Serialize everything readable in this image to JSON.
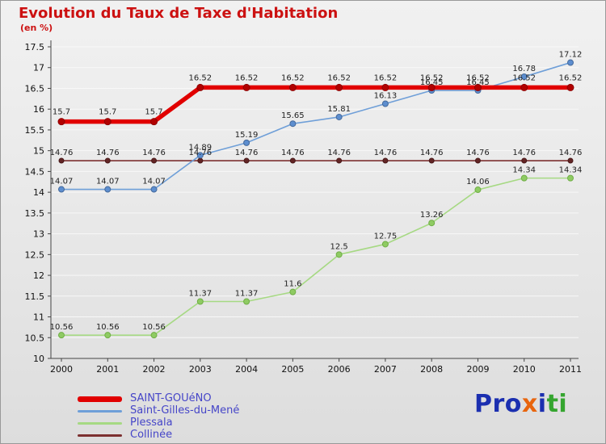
{
  "chart_data": {
    "type": "line",
    "title": "Evolution du Taux de Taxe d'Habitation",
    "subtitle": "(en %)",
    "x": [
      2000,
      2001,
      2002,
      2003,
      2004,
      2005,
      2006,
      2007,
      2008,
      2009,
      2010,
      2011
    ],
    "ylim": [
      10,
      17.5
    ],
    "yticks": [
      10,
      10.5,
      11,
      11.5,
      12,
      12.5,
      13,
      13.5,
      14,
      14.5,
      15,
      15.5,
      16,
      16.5,
      17,
      17.5
    ],
    "grid": true,
    "legend_position": "bottom-left",
    "xlabel": "",
    "ylabel": "",
    "series": [
      {
        "name": "SAINT-GOUéNO",
        "color": "#e10000",
        "line_width": 5.5,
        "marker_radius": 4,
        "marker_fill": "#b20000",
        "marker_stroke": "#8e0000",
        "label_dy": 9,
        "values": [
          15.7,
          15.7,
          15.7,
          16.52,
          16.52,
          16.52,
          16.52,
          16.52,
          16.52,
          16.52,
          16.52,
          16.52
        ]
      },
      {
        "name": "Saint-Gilles-du-Mené",
        "color": "#6f9fd8",
        "line_width": 1.6,
        "marker_radius": 3.5,
        "marker_fill": "#5d8ecf",
        "marker_stroke": "#44699b",
        "label_dy": 7,
        "values": [
          14.07,
          14.07,
          14.07,
          14.89,
          15.19,
          15.65,
          15.81,
          16.13,
          16.45,
          16.45,
          16.78,
          17.12
        ]
      },
      {
        "name": "Plessala",
        "color": "#a6d983",
        "line_width": 1.6,
        "marker_radius": 3.5,
        "marker_fill": "#8fcb63",
        "marker_stroke": "#6fae45",
        "label_dy": 7,
        "values": [
          10.56,
          10.56,
          10.56,
          11.37,
          11.37,
          11.6,
          12.5,
          12.75,
          13.26,
          14.06,
          14.34,
          14.34
        ]
      },
      {
        "name": "Collinée",
        "color": "#7c3030",
        "line_width": 1.6,
        "marker_radius": 3,
        "marker_fill": "#632525",
        "marker_stroke": "#471818",
        "label_dy": 7,
        "values": [
          14.76,
          14.76,
          14.76,
          14.76,
          14.76,
          14.76,
          14.76,
          14.76,
          14.76,
          14.76,
          14.76,
          14.76
        ]
      }
    ]
  },
  "colors": {
    "title": "#cc1111",
    "legend_text": "#4545c8",
    "axis": "#444444",
    "grid": "#f8f8f8",
    "data_label": "#222222",
    "tick_label": "#111111",
    "background_top": "#f1f1f1",
    "background_bottom": "#dddddd"
  },
  "logo": {
    "segments": [
      {
        "text": "Pro",
        "color": "#1b2fb0"
      },
      {
        "text": "x",
        "color": "#e8650e"
      },
      {
        "text": "i",
        "color": "#1b2fb0"
      },
      {
        "text": "ti",
        "color": "#35a52f"
      }
    ]
  }
}
